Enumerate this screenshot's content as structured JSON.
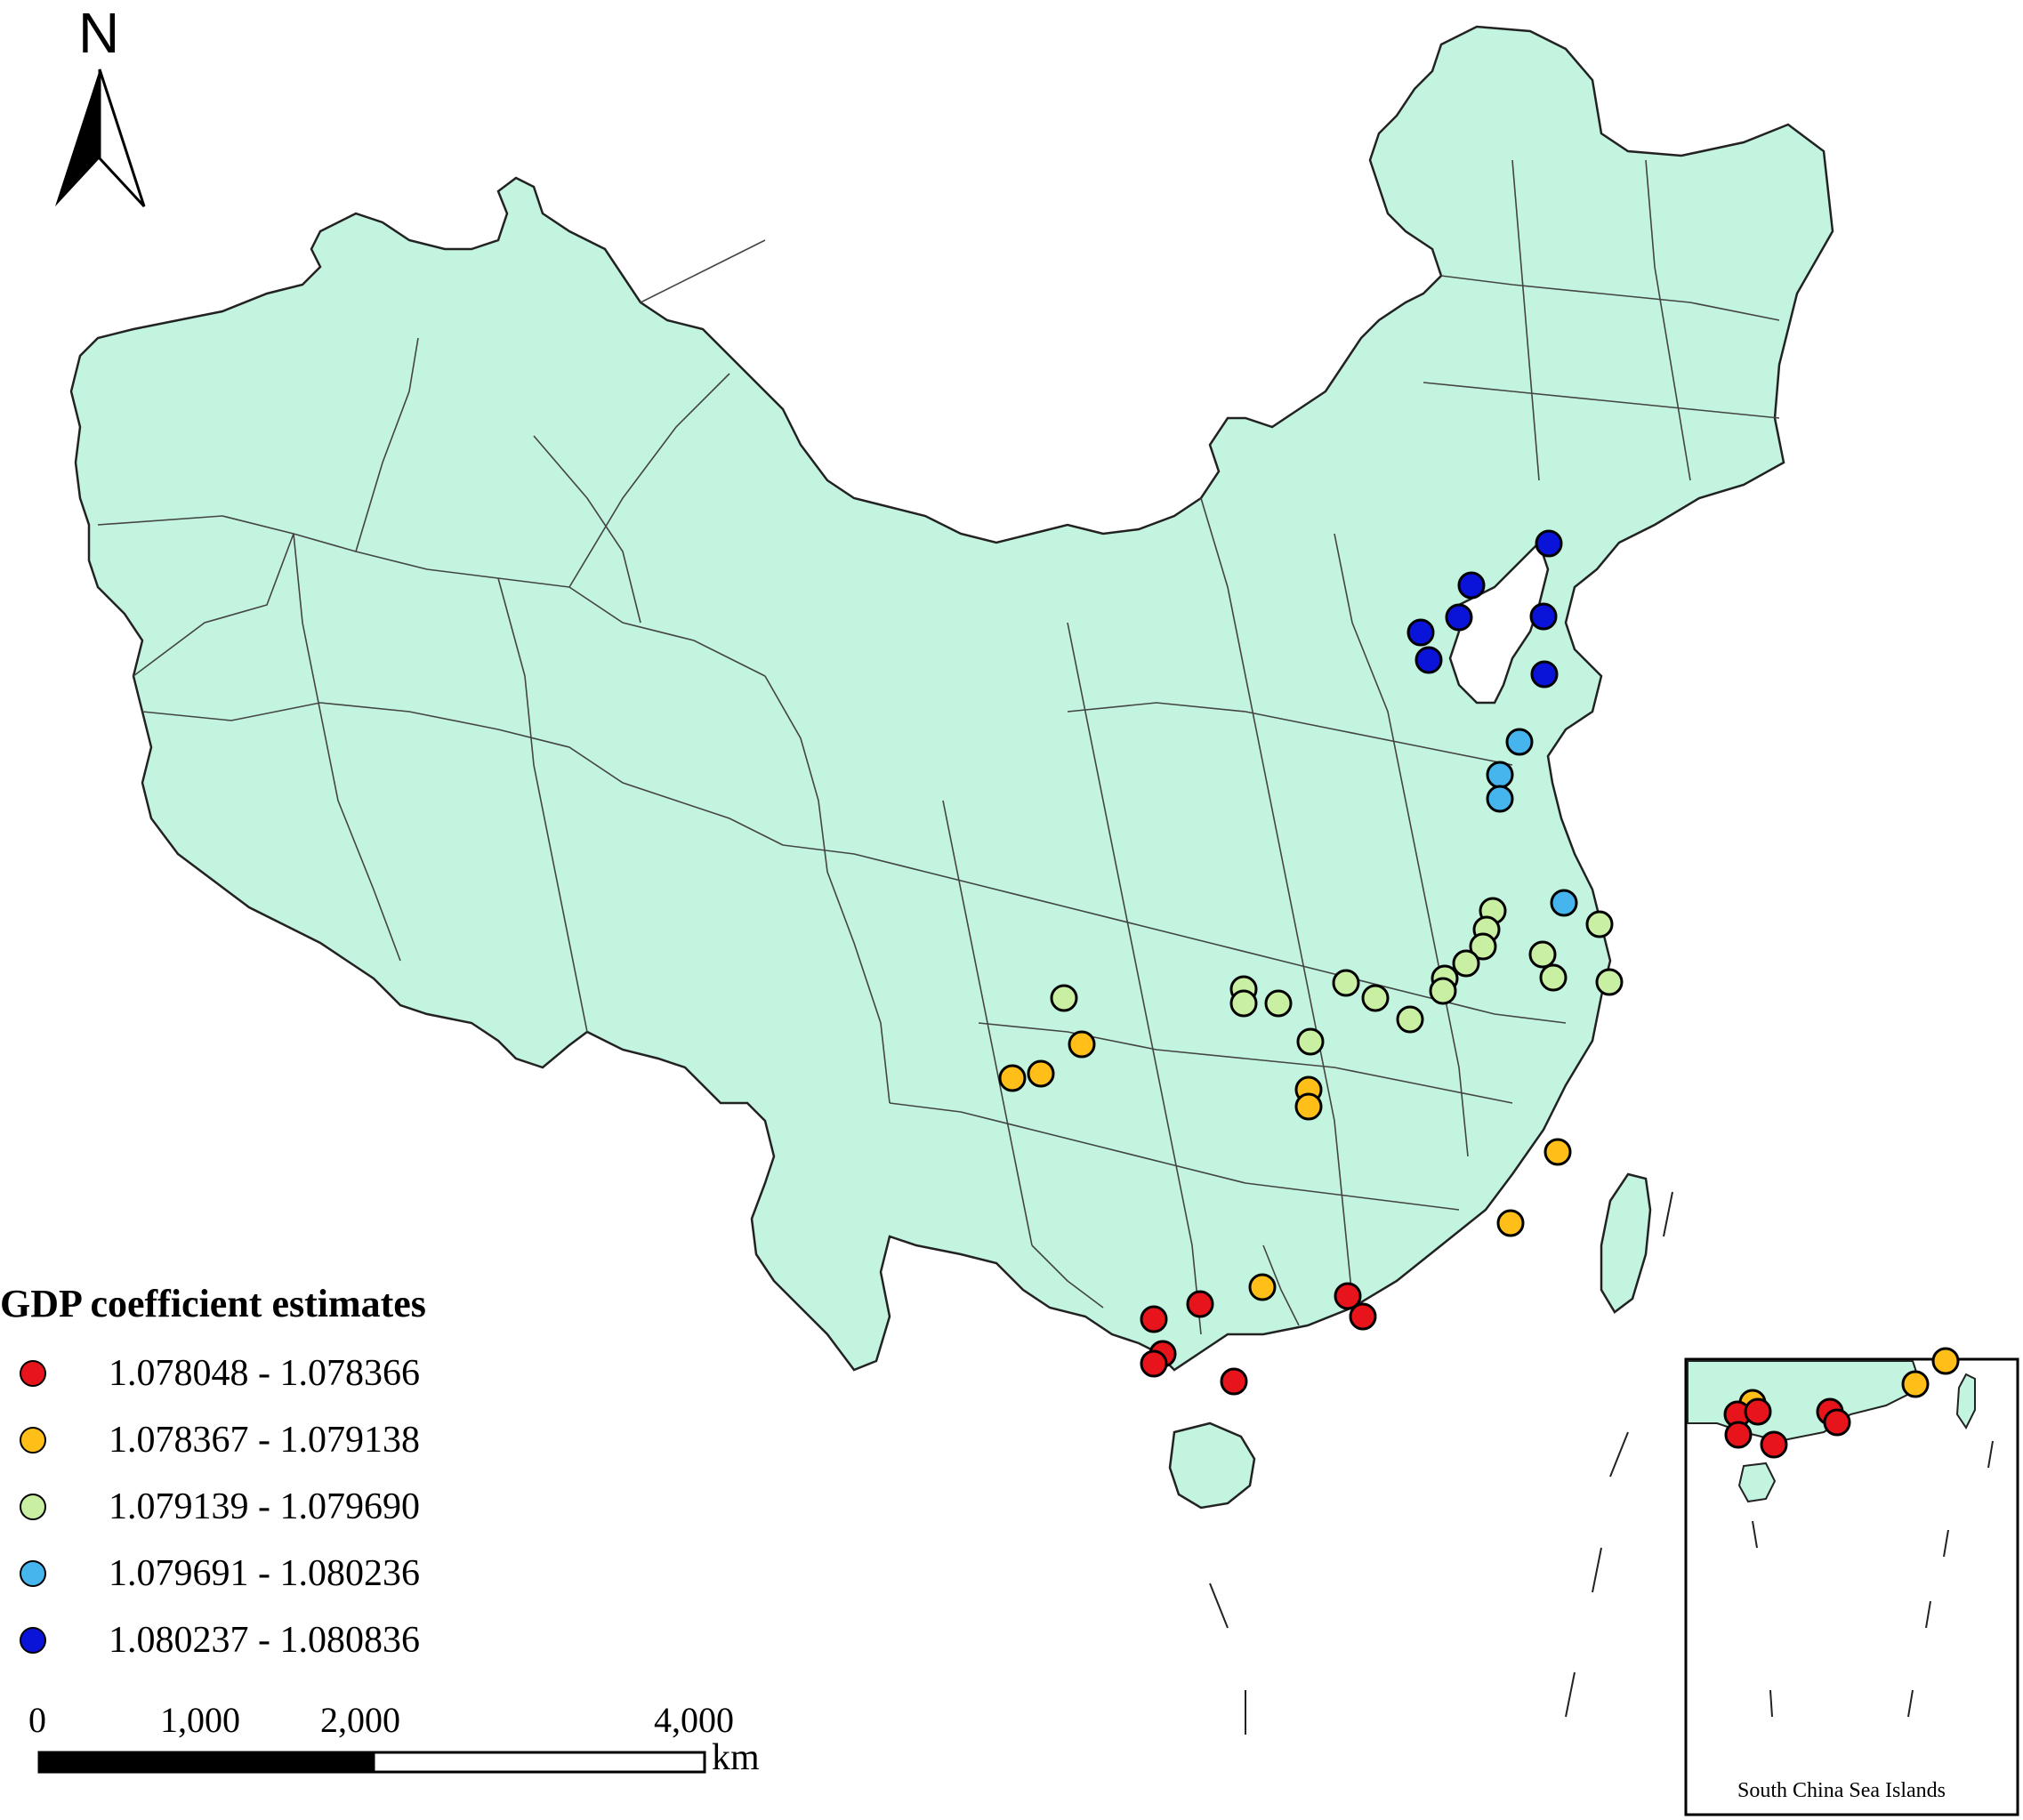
{
  "north_label": "N",
  "legend": {
    "title": "GDP coefficient estimates",
    "classes": [
      {
        "range": "1.078048 - 1.078366",
        "color": "#e8141b"
      },
      {
        "range": "1.078367 - 1.079138",
        "color": "#ffbf18"
      },
      {
        "range": "1.079139 - 1.079690",
        "color": "#c9f0a2"
      },
      {
        "range": "1.079691 - 1.080236",
        "color": "#46b5ee"
      },
      {
        "range": "1.080237 - 1.080836",
        "color": "#0a13d8"
      }
    ]
  },
  "scale_bar": {
    "labels": [
      "0",
      "1,000",
      "2,000",
      "4,000"
    ],
    "unit": "km"
  },
  "inset_caption": "South China Sea Islands",
  "colors": {
    "land": "#c2f4df",
    "border": "#444444",
    "outline": "#222222"
  }
}
